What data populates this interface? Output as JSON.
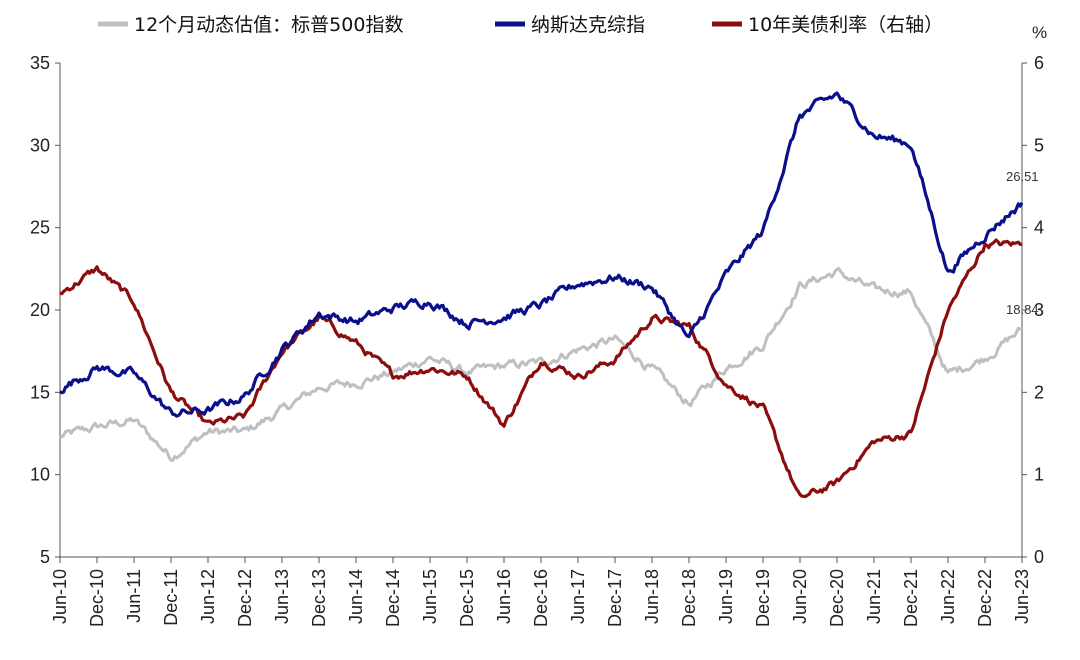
{
  "chart_data": {
    "type": "line",
    "legend_position": "top",
    "grid": false,
    "right_axis_unit": "%",
    "x_labels": [
      "Jun-10",
      "Dec-10",
      "Jun-11",
      "Dec-11",
      "Jun-12",
      "Dec-12",
      "Jun-13",
      "Dec-13",
      "Jun-14",
      "Dec-14",
      "Jun-15",
      "Dec-15",
      "Jun-16",
      "Dec-16",
      "Jun-17",
      "Dec-17",
      "Jun-18",
      "Dec-18",
      "Jun-19",
      "Dec-19",
      "Jun-20",
      "Dec-20",
      "Jun-21",
      "Dec-21",
      "Jun-22",
      "Dec-22",
      "Jun-23"
    ],
    "left_axis": {
      "min": 5,
      "max": 35,
      "ticks": [
        5,
        10,
        15,
        20,
        25,
        30,
        35
      ]
    },
    "right_axis": {
      "min": 0,
      "max": 6,
      "ticks": [
        0,
        1,
        2,
        3,
        4,
        5,
        6
      ]
    },
    "series": [
      {
        "name": "12个月动态估值：标普500指数",
        "axis": "left",
        "color": "#bfbfbf",
        "values": [
          12.3,
          12.9,
          13.3,
          11.1,
          12.6,
          12.6,
          13.9,
          15.3,
          15.6,
          16.2,
          17.1,
          16.2,
          16.6,
          16.8,
          17.6,
          18.2,
          16.4,
          14.3,
          16.5,
          17.9,
          21.5,
          22.3,
          21.2,
          21.1,
          16.1,
          17.1,
          18.84
        ]
      },
      {
        "name": "纳斯达克综指",
        "axis": "left",
        "color": "#0a0f8c",
        "values": [
          15.2,
          16.5,
          16.1,
          13.7,
          13.9,
          14.8,
          17.6,
          19.8,
          19.3,
          20.1,
          20.6,
          19.2,
          19.6,
          20.3,
          21.6,
          22.0,
          21.4,
          18.2,
          22.1,
          24.8,
          31.8,
          33.1,
          30.6,
          30.1,
          22.3,
          24.6,
          26.51
        ]
      },
      {
        "name": "10年美债利率（右轴）",
        "axis": "right",
        "color": "#8b0d0d",
        "values": [
          3.2,
          3.5,
          3.1,
          2.0,
          1.6,
          1.7,
          2.5,
          2.9,
          2.6,
          2.2,
          2.3,
          2.2,
          1.6,
          2.4,
          2.2,
          2.4,
          2.9,
          2.8,
          2.1,
          1.8,
          0.7,
          0.9,
          1.4,
          1.5,
          3.0,
          3.8,
          3.8
        ]
      }
    ],
    "annotations": [
      {
        "text": "26.51",
        "series": "纳斯达克综指"
      },
      {
        "text": "18.84",
        "series": "12个月动态估值：标普500指数"
      }
    ]
  }
}
